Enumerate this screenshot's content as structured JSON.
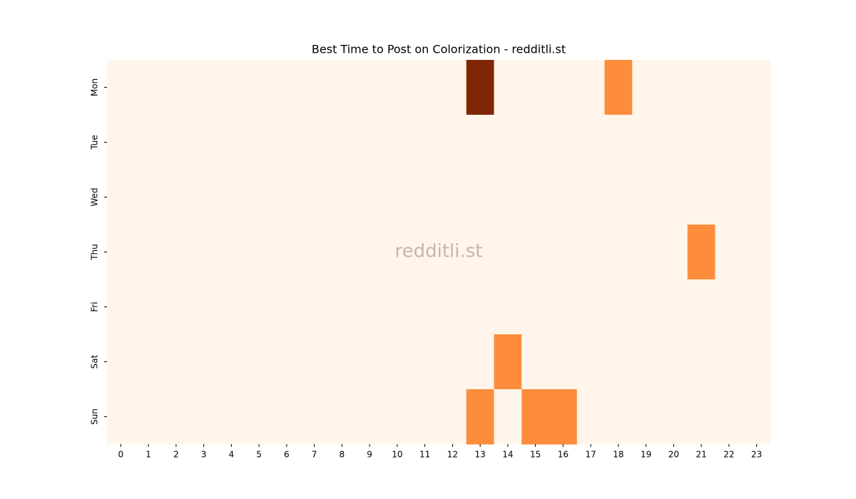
{
  "chart_data": {
    "type": "heatmap",
    "title": "Best Time to Post on Colorization - redditli.st",
    "watermark": "redditli.st",
    "x": [
      "0",
      "1",
      "2",
      "3",
      "4",
      "5",
      "6",
      "7",
      "8",
      "9",
      "10",
      "11",
      "12",
      "13",
      "14",
      "15",
      "16",
      "17",
      "18",
      "19",
      "20",
      "21",
      "22",
      "23"
    ],
    "categories": [
      "Mon",
      "Tue",
      "Wed",
      "Thu",
      "Fri",
      "Sat",
      "Sun"
    ],
    "values": [
      [
        0,
        0,
        0,
        0,
        0,
        0,
        0,
        0,
        0,
        0,
        0,
        0,
        0,
        2,
        0,
        0,
        0,
        0,
        1,
        0,
        0,
        0,
        0,
        0
      ],
      [
        0,
        0,
        0,
        0,
        0,
        0,
        0,
        0,
        0,
        0,
        0,
        0,
        0,
        0,
        0,
        0,
        0,
        0,
        0,
        0,
        0,
        0,
        0,
        0
      ],
      [
        0,
        0,
        0,
        0,
        0,
        0,
        0,
        0,
        0,
        0,
        0,
        0,
        0,
        0,
        0,
        0,
        0,
        0,
        0,
        0,
        0,
        0,
        0,
        0
      ],
      [
        0,
        0,
        0,
        0,
        0,
        0,
        0,
        0,
        0,
        0,
        0,
        0,
        0,
        0,
        0,
        0,
        0,
        0,
        0,
        0,
        0,
        1,
        0,
        0
      ],
      [
        0,
        0,
        0,
        0,
        0,
        0,
        0,
        0,
        0,
        0,
        0,
        0,
        0,
        0,
        0,
        0,
        0,
        0,
        0,
        0,
        0,
        0,
        0,
        0
      ],
      [
        0,
        0,
        0,
        0,
        0,
        0,
        0,
        0,
        0,
        0,
        0,
        0,
        0,
        0,
        1,
        0,
        0,
        0,
        0,
        0,
        0,
        0,
        0,
        0
      ],
      [
        0,
        0,
        0,
        0,
        0,
        0,
        0,
        0,
        0,
        0,
        0,
        0,
        0,
        1,
        0,
        1,
        1,
        0,
        0,
        0,
        0,
        0,
        0,
        0
      ]
    ],
    "zlim": [
      0,
      2
    ],
    "colormap": [
      "#fff5eb",
      "#fd8d3c",
      "#7f2704"
    ]
  }
}
